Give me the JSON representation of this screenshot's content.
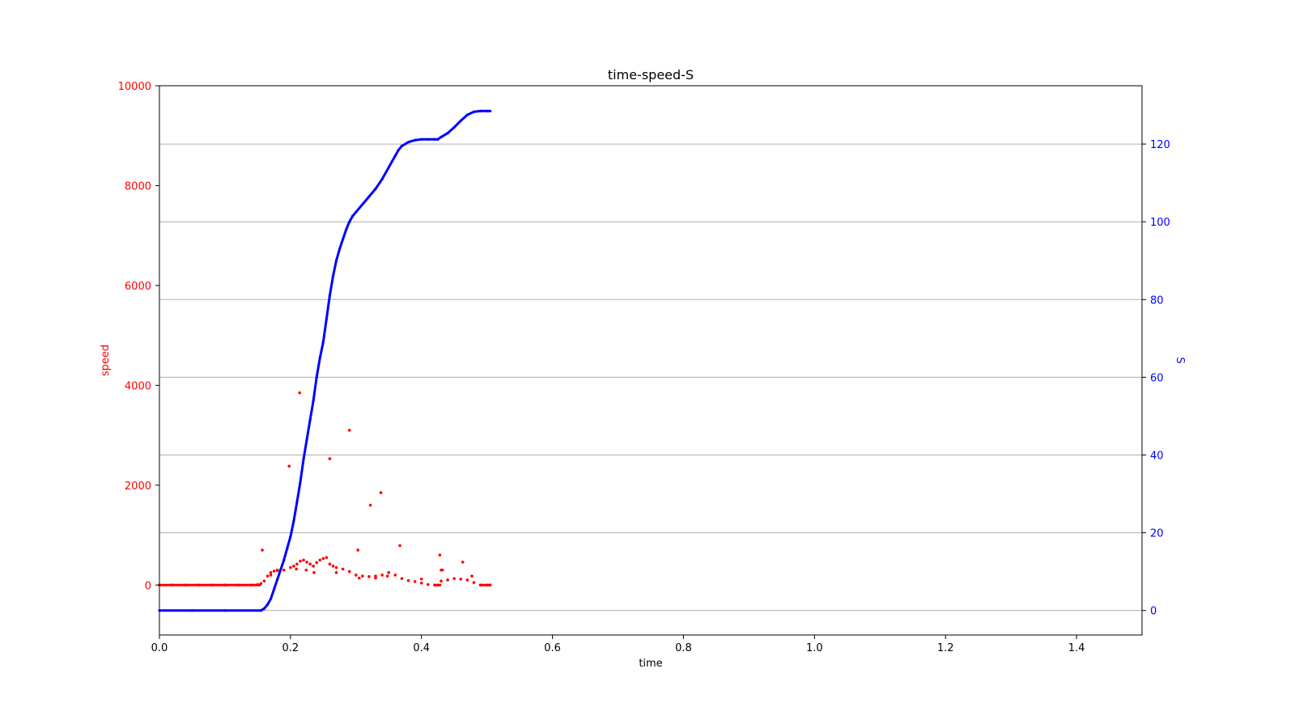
{
  "chart_data": {
    "type": "scatter",
    "title": "time-speed-S",
    "xlabel": "time",
    "ylabel_left": "speed",
    "ylabel_right": "S",
    "xlim": [
      0.0,
      1.5
    ],
    "ylim_left": [
      -1000,
      10000
    ],
    "ylim_right": [
      -6.3,
      135
    ],
    "x_ticks": [
      "0.0",
      "0.2",
      "0.4",
      "0.6",
      "0.8",
      "1.0",
      "1.2",
      "1.4"
    ],
    "x_tick_values": [
      0.0,
      0.2,
      0.4,
      0.6,
      0.8,
      1.0,
      1.2,
      1.4
    ],
    "y_left_ticks": [
      "0",
      "2000",
      "4000",
      "6000",
      "8000",
      "10000"
    ],
    "y_left_tick_values": [
      0,
      2000,
      4000,
      6000,
      8000,
      10000
    ],
    "y_right_ticks": [
      "0",
      "20",
      "40",
      "60",
      "80",
      "100",
      "120"
    ],
    "y_right_tick_values": [
      0,
      20,
      40,
      60,
      80,
      100,
      120
    ],
    "grid": "horizontal on right axis",
    "colors": {
      "speed": "#ff0000",
      "S": "#0000ff",
      "grid": "#b0b0b0",
      "axis": "#000000"
    },
    "series": [
      {
        "axis": "left",
        "color": "#ff0000",
        "x": [
          0.0,
          0.02,
          0.04,
          0.06,
          0.08,
          0.1,
          0.12,
          0.14,
          0.15,
          0.155,
          0.16,
          0.165,
          0.17,
          0.175,
          0.18,
          0.19,
          0.2,
          0.205,
          0.21,
          0.215,
          0.22,
          0.225,
          0.23,
          0.235,
          0.24,
          0.245,
          0.25,
          0.255,
          0.26,
          0.265,
          0.27,
          0.28,
          0.29,
          0.3,
          0.31,
          0.32,
          0.33,
          0.34,
          0.35,
          0.36,
          0.37,
          0.38,
          0.39,
          0.4,
          0.41,
          0.42,
          0.425,
          0.43,
          0.44,
          0.45,
          0.46,
          0.47,
          0.48,
          0.49,
          0.5,
          0.505,
          0.157,
          0.17,
          0.18,
          0.198,
          0.209,
          0.214,
          0.224,
          0.236,
          0.26,
          0.27,
          0.29,
          0.303,
          0.305,
          0.322,
          0.33,
          0.338,
          0.348,
          0.367,
          0.4,
          0.428,
          0.432,
          0.43,
          0.463,
          0.477
        ],
        "y": [
          0,
          0,
          0,
          0,
          0,
          0,
          0,
          0,
          10,
          30,
          80,
          180,
          250,
          280,
          290,
          300,
          350,
          380,
          420,
          480,
          500,
          460,
          420,
          380,
          450,
          500,
          530,
          550,
          420,
          380,
          350,
          320,
          270,
          200,
          180,
          170,
          180,
          200,
          250,
          200,
          130,
          90,
          70,
          40,
          10,
          0,
          0,
          80,
          100,
          130,
          120,
          100,
          50,
          0,
          0,
          0,
          700,
          200,
          300,
          2380,
          320,
          3850,
          300,
          250,
          2530,
          250,
          3100,
          700,
          140,
          1600,
          140,
          1850,
          180,
          790,
          120,
          600,
          300,
          300,
          460,
          180
        ]
      },
      {
        "axis": "right",
        "color": "#0000ff",
        "x": [
          0.0,
          0.05,
          0.1,
          0.155,
          0.16,
          0.165,
          0.17,
          0.175,
          0.18,
          0.185,
          0.19,
          0.195,
          0.2,
          0.205,
          0.21,
          0.215,
          0.22,
          0.225,
          0.23,
          0.235,
          0.24,
          0.245,
          0.25,
          0.255,
          0.26,
          0.265,
          0.27,
          0.275,
          0.28,
          0.285,
          0.29,
          0.295,
          0.3,
          0.31,
          0.32,
          0.33,
          0.34,
          0.35,
          0.355,
          0.36,
          0.365,
          0.37,
          0.38,
          0.39,
          0.4,
          0.41,
          0.42,
          0.425,
          0.43,
          0.44,
          0.45,
          0.46,
          0.47,
          0.48,
          0.49,
          0.5,
          0.505
        ],
        "y": [
          0,
          0,
          0,
          0,
          0.5,
          1.5,
          3,
          5.5,
          8,
          10.5,
          13,
          16,
          19,
          23,
          28,
          33,
          39,
          44,
          49,
          54,
          60,
          65,
          69,
          75,
          81,
          86,
          90,
          93,
          95.5,
          98,
          100,
          101.5,
          102.5,
          104.5,
          106.5,
          108.5,
          111,
          114,
          115.5,
          117,
          118.5,
          119.5,
          120.5,
          121,
          121.2,
          121.2,
          121.2,
          121.2,
          121.8,
          122.8,
          124.3,
          126,
          127.5,
          128.3,
          128.5,
          128.5,
          128.5
        ]
      }
    ]
  }
}
